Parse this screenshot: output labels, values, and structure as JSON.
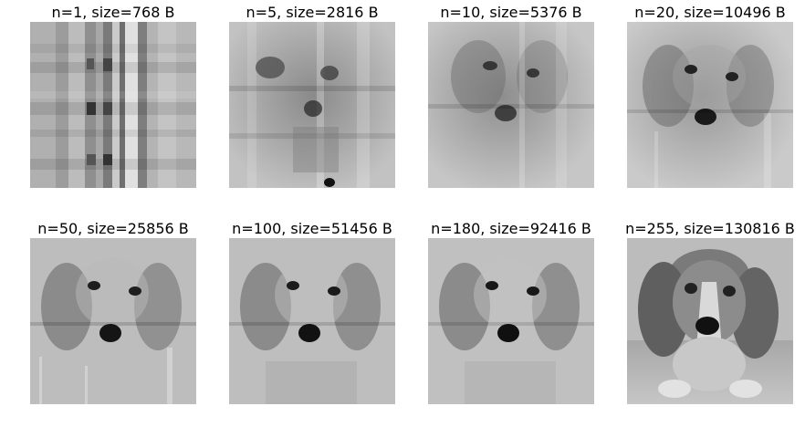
{
  "panels": [
    {
      "title": "n=1, size=768 B",
      "components": 1,
      "size_bytes": 768
    },
    {
      "title": "n=5, size=2816 B",
      "components": 5,
      "size_bytes": 2816
    },
    {
      "title": "n=10, size=5376 B",
      "components": 10,
      "size_bytes": 5376
    },
    {
      "title": "n=20, size=10496 B",
      "components": 20,
      "size_bytes": 10496
    },
    {
      "title": "n=50, size=25856 B",
      "components": 50,
      "size_bytes": 25856
    },
    {
      "title": "n=100, size=51456 B",
      "components": 100,
      "size_bytes": 51456
    },
    {
      "title": "n=180, size=92416 B",
      "components": 180,
      "size_bytes": 92416
    },
    {
      "title": "n=255, size=130816 B",
      "components": 255,
      "size_bytes": 130816
    }
  ],
  "colors": {
    "background": "#ffffff",
    "title_text": "#000000",
    "image_tone": "grayscale"
  }
}
